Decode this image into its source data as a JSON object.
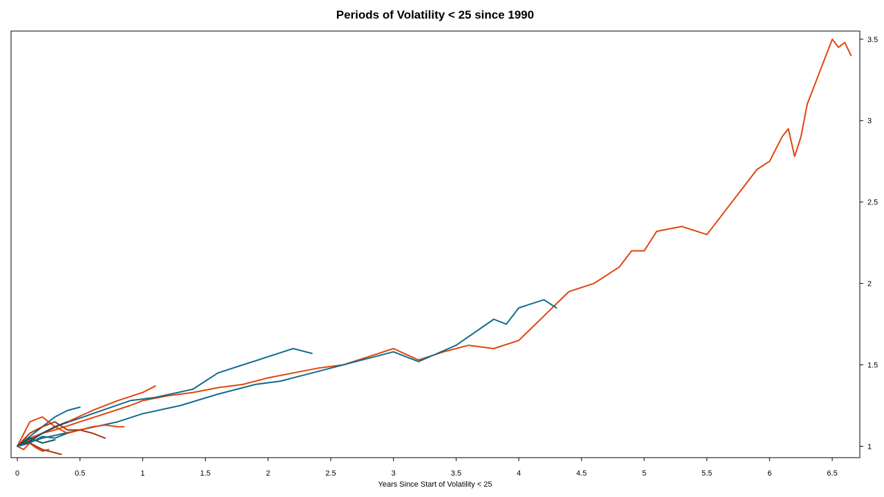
{
  "chart_data": {
    "type": "line",
    "title": "Periods of Volatility < 25 since 1990",
    "xlabel": "Years Since Start of Volatility < 25",
    "ylabel": "",
    "xlim": [
      -0.05,
      6.72
    ],
    "ylim": [
      0.93,
      3.55
    ],
    "y_axis_side": "right",
    "grid": false,
    "legend": "none",
    "x_ticks": [
      0,
      0.5,
      1,
      1.5,
      2,
      2.5,
      3,
      3.5,
      4,
      4.5,
      5,
      5.5,
      6,
      6.5
    ],
    "x_tick_labels": [
      "0",
      "0.5",
      "1",
      "1.5",
      "2",
      "2.5",
      "3",
      "3.5",
      "4",
      "4.5",
      "5",
      "5.5",
      "6",
      "6.5"
    ],
    "y_ticks": [
      1,
      1.5,
      2,
      2.5,
      3,
      3.5
    ],
    "y_tick_labels": [
      "1",
      "1.5",
      "2",
      "2.5",
      "3",
      "3.5"
    ],
    "colors": {
      "orange": "#e0440e",
      "teal": "#0f6b8f",
      "dark_red": "#a9360c",
      "dark_blue": "#1a4d62"
    },
    "series": [
      {
        "color": "#e0440e",
        "x": [
          0,
          0.1,
          0.2,
          0.3,
          0.5,
          0.7,
          0.9,
          1.0,
          1.2,
          1.4,
          1.6,
          1.8,
          2.0,
          2.2,
          2.4,
          2.6,
          2.8,
          3.0,
          3.2,
          3.4,
          3.6,
          3.8,
          4.0,
          4.2,
          4.4,
          4.6,
          4.8,
          4.9,
          5.0,
          5.1,
          5.3,
          5.5,
          5.6,
          5.7,
          5.8,
          5.9,
          6.0,
          6.1,
          6.15,
          6.2,
          6.25,
          6.3,
          6.4,
          6.5,
          6.55,
          6.6,
          6.65
        ],
        "y": [
          1.0,
          1.05,
          1.08,
          1.1,
          1.15,
          1.2,
          1.25,
          1.28,
          1.31,
          1.33,
          1.36,
          1.38,
          1.42,
          1.45,
          1.48,
          1.5,
          1.55,
          1.6,
          1.53,
          1.58,
          1.62,
          1.6,
          1.65,
          1.8,
          1.95,
          2.0,
          2.1,
          2.2,
          2.2,
          2.32,
          2.35,
          2.3,
          2.4,
          2.5,
          2.6,
          2.7,
          2.75,
          2.9,
          2.95,
          2.78,
          2.9,
          3.1,
          3.3,
          3.5,
          3.45,
          3.48,
          3.4
        ]
      },
      {
        "color": "#0f6b8f",
        "x": [
          0,
          0.2,
          0.5,
          0.8,
          1.0,
          1.3,
          1.6,
          1.9,
          2.1,
          2.3,
          2.5,
          2.7,
          3.0,
          3.2,
          3.5,
          3.8,
          3.9,
          4.0,
          4.2,
          4.3
        ],
        "y": [
          1.0,
          1.05,
          1.1,
          1.15,
          1.2,
          1.25,
          1.32,
          1.38,
          1.4,
          1.44,
          1.48,
          1.52,
          1.58,
          1.52,
          1.62,
          1.78,
          1.75,
          1.85,
          1.9,
          1.85
        ]
      },
      {
        "color": "#0f6b8f",
        "x": [
          0,
          0.3,
          0.6,
          0.9,
          1.1,
          1.4,
          1.6,
          1.8,
          2.0,
          2.2,
          2.35
        ],
        "y": [
          1.0,
          1.12,
          1.2,
          1.28,
          1.3,
          1.35,
          1.45,
          1.5,
          1.55,
          1.6,
          1.57
        ]
      },
      {
        "color": "#0f6b8f",
        "x": [
          0,
          0.1,
          0.2,
          0.3,
          0.4,
          0.5
        ],
        "y": [
          1.0,
          1.06,
          1.12,
          1.18,
          1.22,
          1.24
        ]
      },
      {
        "color": "#e0440e",
        "x": [
          0,
          0.2,
          0.4,
          0.6,
          0.8,
          1.0,
          1.1
        ],
        "y": [
          1.0,
          1.08,
          1.15,
          1.22,
          1.28,
          1.33,
          1.37
        ]
      },
      {
        "color": "#e0440e",
        "x": [
          0,
          0.1,
          0.2,
          0.3,
          0.4,
          0.5,
          0.6,
          0.7,
          0.8,
          0.85
        ],
        "y": [
          1.0,
          1.15,
          1.18,
          1.12,
          1.08,
          1.1,
          1.12,
          1.13,
          1.12,
          1.12
        ]
      },
      {
        "color": "#a9360c",
        "x": [
          0,
          0.1,
          0.2,
          0.3,
          0.4,
          0.5,
          0.6,
          0.7
        ],
        "y": [
          1.0,
          1.08,
          1.12,
          1.15,
          1.1,
          1.1,
          1.08,
          1.05
        ]
      },
      {
        "color": "#1a4d62",
        "x": [
          0,
          0.1,
          0.2,
          0.3,
          0.4
        ],
        "y": [
          1.0,
          1.03,
          1.08,
          1.12,
          1.15
        ]
      },
      {
        "color": "#e0440e",
        "x": [
          0,
          0.05,
          0.1,
          0.15,
          0.2,
          0.25
        ],
        "y": [
          1.0,
          0.98,
          1.02,
          0.99,
          0.97,
          0.98
        ]
      },
      {
        "color": "#a9360c",
        "x": [
          0,
          0.1,
          0.2,
          0.3,
          0.35
        ],
        "y": [
          1.0,
          1.02,
          0.98,
          0.96,
          0.95
        ]
      },
      {
        "color": "#1a4d62",
        "x": [
          0,
          0.1,
          0.2,
          0.3
        ],
        "y": [
          1.0,
          1.05,
          1.02,
          1.04
        ]
      },
      {
        "color": "#0f6b8f",
        "x": [
          0,
          0.1,
          0.2,
          0.3,
          0.4
        ],
        "y": [
          1.0,
          1.02,
          1.06,
          1.05,
          1.08
        ]
      }
    ]
  }
}
